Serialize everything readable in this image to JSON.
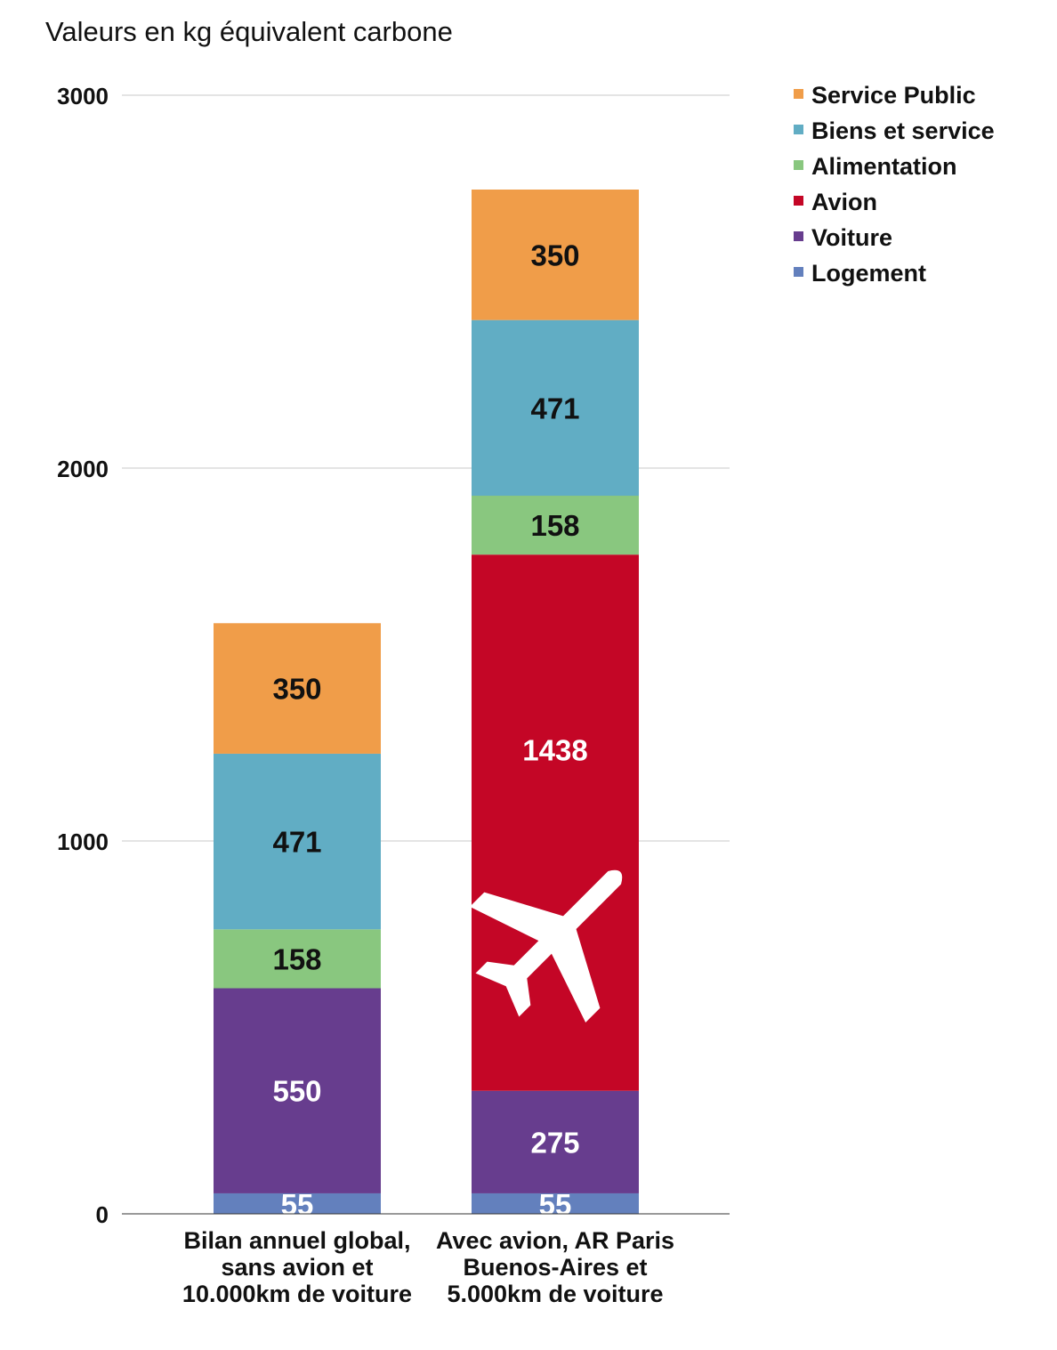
{
  "chart_data": {
    "type": "bar",
    "stacked": true,
    "title": "Valeurs en kg équivalent carbone",
    "xlabel": "",
    "ylabel": "",
    "ylim": [
      0,
      3000
    ],
    "yticks": [
      0,
      1000,
      2000,
      3000
    ],
    "grid": true,
    "legend_position": "top-right",
    "categories": [
      [
        "Bilan annuel global,",
        "sans avion et",
        "10.000km de voiture"
      ],
      [
        "Avec avion, AR Paris",
        "Buenos-Aires et",
        "5.000km de voiture"
      ]
    ],
    "series": [
      {
        "name": "Logement",
        "color": "#6380bd",
        "values": [
          55,
          55
        ],
        "label_color": [
          "#ffffff",
          "#ffffff"
        ]
      },
      {
        "name": "Voiture",
        "color": "#673d8e",
        "values": [
          550,
          275
        ],
        "label_color": [
          "#ffffff",
          "#ffffff"
        ]
      },
      {
        "name": "Avion",
        "color": "#c40626",
        "values": [
          0,
          1438
        ],
        "label_color": [
          "#ffffff",
          "#ffffff"
        ]
      },
      {
        "name": "Alimentation",
        "color": "#89c77f",
        "values": [
          158,
          158
        ],
        "label_color": [
          "#111111",
          "#111111"
        ]
      },
      {
        "name": "Biens et service",
        "color": "#61adc4",
        "values": [
          471,
          471
        ],
        "label_color": [
          "#111111",
          "#111111"
        ]
      },
      {
        "name": "Service Public",
        "color": "#f09d49",
        "values": [
          350,
          350
        ],
        "label_color": [
          "#111111",
          "#111111"
        ]
      }
    ],
    "legend_order": [
      "Service Public",
      "Biens et service",
      "Alimentation",
      "Avion",
      "Voiture",
      "Logement"
    ],
    "icons": [
      {
        "name": "airplane-icon",
        "category_index": 1,
        "series": "Avion",
        "color": "#ffffff"
      }
    ]
  }
}
